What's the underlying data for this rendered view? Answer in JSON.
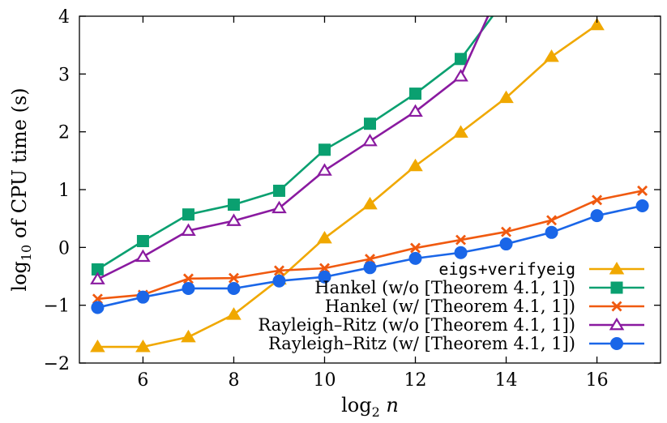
{
  "chart_data": {
    "type": "line",
    "xlabel": "log2 n",
    "ylabel": "log10 of CPU time (s)",
    "xlim": [
      4.6,
      17.4
    ],
    "ylim": [
      -2,
      4
    ],
    "xticks": [
      6,
      8,
      10,
      12,
      14,
      16
    ],
    "yticks": [
      -2,
      -1,
      0,
      1,
      2,
      3,
      4
    ],
    "ytick_labels": [
      "−2",
      "−1",
      "0",
      "1",
      "2",
      "3",
      "4"
    ],
    "grid": false,
    "legend_position": "bottom-right",
    "series": [
      {
        "name": "eigs+verifyeig",
        "color": "#f0a800",
        "marker": "filled-triangle",
        "x": [
          5,
          6,
          7,
          8,
          9,
          10,
          11,
          12,
          13,
          14,
          15,
          16
        ],
        "y": [
          -1.72,
          -1.72,
          -1.55,
          -1.16,
          -0.55,
          0.16,
          0.75,
          1.41,
          1.99,
          2.59,
          3.3,
          3.85
        ]
      },
      {
        "name": "Hankel (w/o [Theorem 4.1, 1])",
        "color": "#0aa070",
        "marker": "filled-square",
        "x": [
          5,
          6,
          7,
          8,
          9,
          10,
          11,
          12,
          13,
          13.7
        ],
        "y": [
          -0.38,
          0.11,
          0.57,
          0.74,
          0.98,
          1.69,
          2.14,
          2.66,
          3.26,
          4.0
        ],
        "marker_count": 9
      },
      {
        "name": "Hankel (w/ [Theorem 4.1, 1])",
        "color": "#f05a10",
        "marker": "cross",
        "x": [
          5,
          6,
          7,
          8,
          9,
          10,
          11,
          12,
          13,
          14,
          15,
          16,
          17
        ],
        "y": [
          -0.89,
          -0.82,
          -0.54,
          -0.53,
          -0.4,
          -0.36,
          -0.2,
          -0.01,
          0.13,
          0.27,
          0.47,
          0.82,
          0.98
        ]
      },
      {
        "name": "Rayleigh–Ritz (w/o [Theorem 4.1, 1])",
        "color": "#8a1aa0",
        "marker": "open-triangle",
        "x": [
          5,
          6,
          7,
          8,
          9,
          10,
          11,
          12,
          13,
          13.6
        ],
        "y": [
          -0.55,
          -0.16,
          0.29,
          0.46,
          0.68,
          1.33,
          1.84,
          2.35,
          2.96,
          4.0
        ],
        "marker_count": 9
      },
      {
        "name": "Rayleigh–Ritz (w/ [Theorem 4.1, 1])",
        "color": "#1a66e8",
        "marker": "filled-circle",
        "x": [
          5,
          6,
          7,
          8,
          9,
          10,
          11,
          12,
          13,
          14,
          15,
          16,
          17
        ],
        "y": [
          -1.04,
          -0.86,
          -0.71,
          -0.71,
          -0.58,
          -0.51,
          -0.35,
          -0.19,
          -0.09,
          0.06,
          0.26,
          0.55,
          0.72
        ]
      }
    ]
  }
}
